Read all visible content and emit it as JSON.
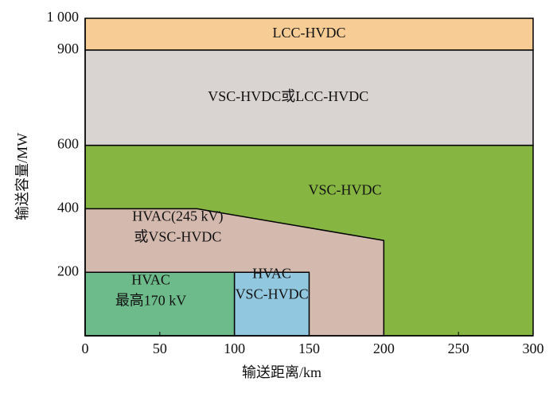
{
  "chart_data": {
    "type": "region",
    "x_label": "输送距离/km",
    "y_label": "输送容量/MW",
    "xlim": [
      0,
      300
    ],
    "xticks": [
      0,
      50,
      100,
      150,
      200,
      250,
      300
    ],
    "ylim": [
      0,
      1000
    ],
    "yticks": [
      200,
      400,
      600,
      900,
      {
        "value": 1000,
        "label": "1 000"
      }
    ],
    "regions": [
      {
        "name": [
          "VSC-HVDC"
        ],
        "color": "#86b542",
        "x": [
          0,
          0,
          300,
          300
        ],
        "y": [
          0,
          600,
          600,
          0
        ]
      },
      {
        "name": [
          "VSC-HVDC或LCC-HVDC"
        ],
        "color": "#d9d3d1",
        "x": [
          0,
          0,
          300,
          300
        ],
        "y": [
          600,
          900,
          900,
          600
        ]
      },
      {
        "name": [
          "LCC-HVDC"
        ],
        "color": "#f8cd95",
        "x": [
          0,
          0,
          300,
          300
        ],
        "y": [
          900,
          1000,
          1000,
          900
        ]
      },
      {
        "name": [
          "HVAC(245 kV)",
          "或VSC-HVDC"
        ],
        "color": "#d4b9ae",
        "x": [
          0,
          0,
          75,
          200,
          200
        ],
        "y": [
          0,
          400,
          400,
          300,
          0
        ]
      },
      {
        "name": [
          "HVAC",
          "最高170 kV"
        ],
        "color": "#6dbb8a",
        "x": [
          0,
          0,
          100,
          100
        ],
        "y": [
          0,
          200,
          200,
          0
        ]
      },
      {
        "name": [
          "HVAC",
          "VSC-HVDC"
        ],
        "color": "#92c8df",
        "x": [
          100,
          100,
          150,
          150
        ],
        "y": [
          0,
          200,
          200,
          0
        ]
      }
    ]
  }
}
